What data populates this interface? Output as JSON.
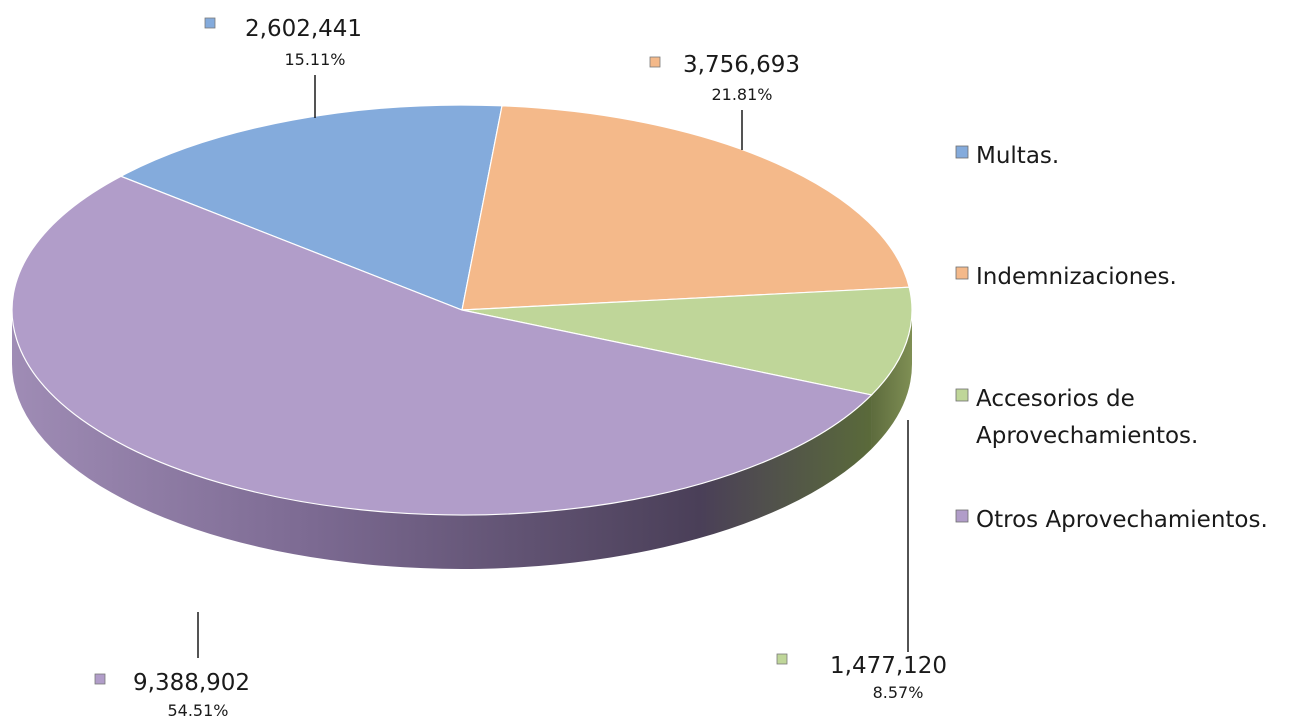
{
  "chart_data": {
    "type": "pie",
    "title": "",
    "style": "3d",
    "legend_position": "right",
    "slices": [
      {
        "name": "Multas.",
        "value": 2602441,
        "value_label": "2,602,441",
        "percent_label": "15.11%",
        "color": "#84ABDC",
        "legend_lines": [
          "Multas."
        ]
      },
      {
        "name": "Indemnizaciones.",
        "value": 3756693,
        "value_label": "3,756,693",
        "percent_label": "21.81%",
        "color": "#F4B98A",
        "legend_lines": [
          "Indemnizaciones."
        ]
      },
      {
        "name": "Accesorios de Aprovechamientos.",
        "value": 1477120,
        "value_label": "1,477,120",
        "percent_label": "8.57%",
        "color": "#BFD699",
        "legend_lines": [
          "Accesorios de",
          "Aprovechamientos."
        ]
      },
      {
        "name": "Otros Aprovechamientos.",
        "value": 9388902,
        "value_label": "9,388,902",
        "percent_label": "54.51%",
        "color": "#B19DC9",
        "legend_lines": [
          "Otros Aprovechamientos."
        ]
      }
    ]
  }
}
